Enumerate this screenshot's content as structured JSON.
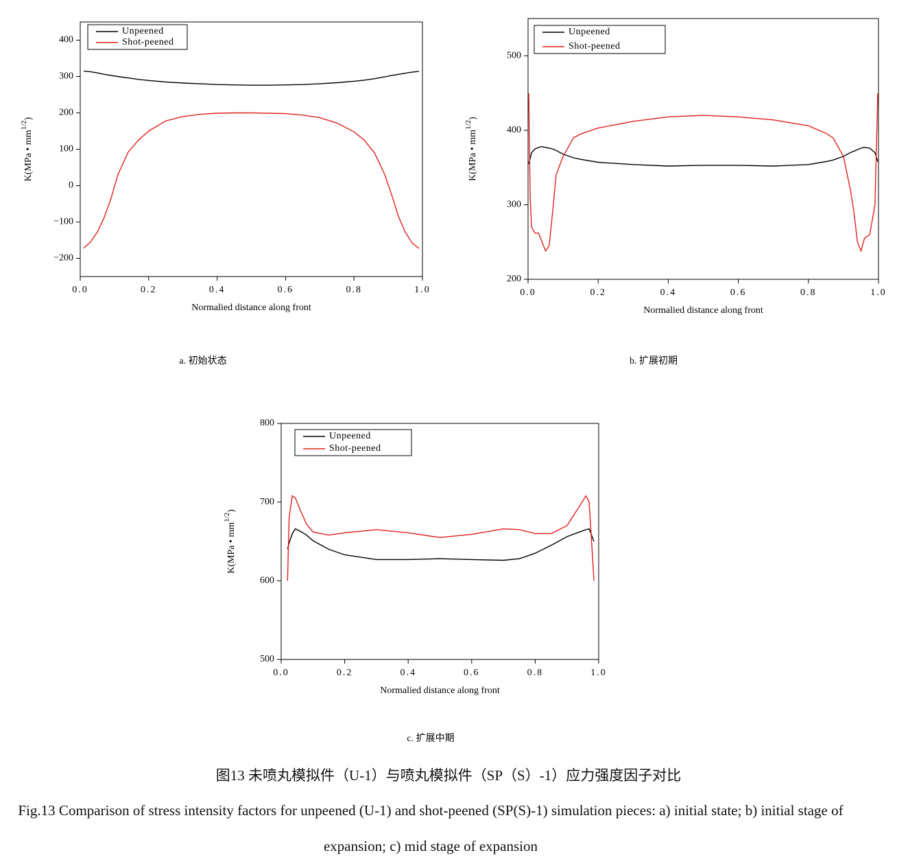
{
  "chart_data": [
    {
      "type": "line",
      "caption": "a.  初始状态",
      "xlabel": "Normalied distance along front",
      "ylabel": "K(MPa • mm",
      "ylabel_sup": "1/2",
      "ylabel_close": ")",
      "x": [
        0.01,
        0.03,
        0.05,
        0.07,
        0.09,
        0.11,
        0.14,
        0.17,
        0.2,
        0.25,
        0.3,
        0.35,
        0.4,
        0.45,
        0.5,
        0.55,
        0.6,
        0.65,
        0.7,
        0.75,
        0.8,
        0.83,
        0.86,
        0.89,
        0.91,
        0.93,
        0.95,
        0.97,
        0.99
      ],
      "series": [
        {
          "name": "Unpeened",
          "color": "#000000",
          "values": [
            315,
            313,
            310,
            306,
            303,
            300,
            296,
            292,
            289,
            285,
            282,
            280,
            278,
            277,
            276,
            276,
            277,
            278,
            280,
            283,
            287,
            290,
            294,
            299,
            303,
            306,
            309,
            312,
            314
          ]
        },
        {
          "name": "Shot-peened",
          "color": "#e0201a",
          "values": [
            -172,
            -155,
            -128,
            -88,
            -35,
            30,
            92,
            125,
            150,
            178,
            190,
            196,
            199,
            200,
            200,
            199,
            198,
            194,
            187,
            172,
            148,
            125,
            90,
            30,
            -25,
            -85,
            -128,
            -158,
            -173
          ]
        }
      ],
      "xlim": [
        0,
        1
      ],
      "ylim": [
        -250,
        450
      ],
      "xticks": [
        {
          "value": 0,
          "label": "0.0"
        },
        0.2,
        0.4,
        0.6,
        0.8,
        {
          "value": 1,
          "label": "1.0"
        }
      ],
      "yticks": [
        {
          "value": -200,
          "label": "−200"
        },
        {
          "value": -100,
          "label": "−100"
        },
        0,
        100,
        200,
        300,
        400
      ],
      "legend": "upper left"
    },
    {
      "type": "line",
      "caption": "b.  扩展初期",
      "xlabel": "Normalied distance along front",
      "ylabel": "K(MPa • mm",
      "ylabel_sup": "1/2",
      "ylabel_close": ")",
      "x": [
        0.002,
        0.006,
        0.01,
        0.02,
        0.03,
        0.04,
        0.05,
        0.06,
        0.07,
        0.08,
        0.1,
        0.13,
        0.15,
        0.2,
        0.3,
        0.4,
        0.5,
        0.6,
        0.7,
        0.8,
        0.85,
        0.87,
        0.9,
        0.92,
        0.93,
        0.94,
        0.95,
        0.96,
        0.975,
        0.99,
        0.998
      ],
      "series": [
        {
          "name": "Unpeened",
          "color": "#000000",
          "values": [
            355,
            362,
            370,
            375,
            377,
            378,
            377,
            376,
            375,
            373,
            368,
            363,
            361,
            357,
            354,
            352,
            353,
            353,
            352,
            354,
            358,
            360,
            365,
            370,
            372,
            374,
            376,
            377,
            376,
            370,
            358
          ]
        },
        {
          "name": "Shot-peened",
          "color": "#e0201a",
          "values": [
            450,
            310,
            270,
            262,
            262,
            250,
            238,
            245,
            290,
            340,
            365,
            390,
            395,
            403,
            412,
            418,
            420,
            418,
            414,
            406,
            396,
            390,
            365,
            320,
            290,
            250,
            238,
            255,
            260,
            300,
            450
          ]
        }
      ],
      "xlim": [
        0,
        1
      ],
      "ylim": [
        200,
        550
      ],
      "xticks": [
        {
          "value": 0,
          "label": "0.0"
        },
        0.2,
        0.4,
        0.6,
        0.8,
        {
          "value": 1,
          "label": "1.0"
        }
      ],
      "yticks": [
        200,
        300,
        400,
        500
      ],
      "legend": "upper left"
    },
    {
      "type": "line",
      "caption": "c. 扩展中期",
      "xlabel": "Normalied distance along front",
      "ylabel": "K(MPa • mm",
      "ylabel_sup": "1/2",
      "ylabel_close": ")",
      "x": [
        0.02,
        0.025,
        0.035,
        0.045,
        0.06,
        0.08,
        0.1,
        0.15,
        0.2,
        0.3,
        0.4,
        0.5,
        0.6,
        0.7,
        0.75,
        0.8,
        0.85,
        0.9,
        0.94,
        0.96,
        0.97,
        0.985
      ],
      "series": [
        {
          "name": "Unpeened",
          "color": "#000000",
          "values": [
            640,
            648,
            660,
            666,
            663,
            658,
            651,
            640,
            633,
            627,
            627,
            628,
            627,
            626,
            628,
            635,
            645,
            656,
            662,
            665,
            666,
            650
          ]
        },
        {
          "name": "Shot-peened",
          "color": "#e0201a",
          "values": [
            600,
            680,
            708,
            705,
            690,
            672,
            662,
            658,
            661,
            665,
            661,
            655,
            659,
            666,
            665,
            660,
            660,
            670,
            695,
            708,
            700,
            600
          ]
        }
      ],
      "xlim": [
        0,
        1
      ],
      "ylim": [
        500,
        800
      ],
      "xticks": [
        {
          "value": 0,
          "label": "0.0"
        },
        0.2,
        0.4,
        0.6,
        0.8,
        {
          "value": 1,
          "label": "1.0"
        }
      ],
      "yticks": [
        500,
        600,
        700,
        800
      ],
      "legend": "upper left"
    }
  ],
  "caption_zh": "图13  未喷丸模拟件（U-1）与喷丸模拟件（SP（S）-1）应力强度因子对比",
  "caption_en": "Fig.13 Comparison of stress intensity factors for unpeened (U-1) and shot-peened (SP(S)-1) simulation pieces: a) initial state; b) initial stage of expansion; c) mid stage of expansion"
}
